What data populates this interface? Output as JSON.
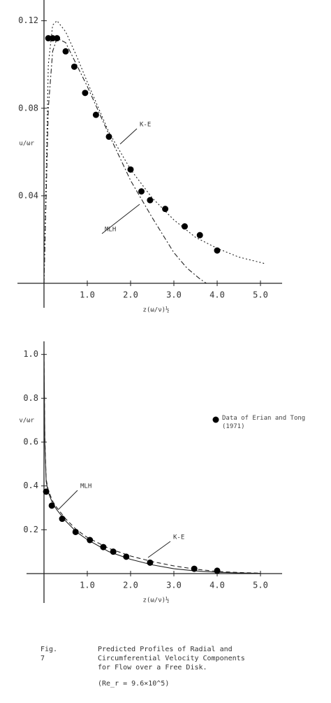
{
  "chart_data": [
    {
      "type": "line",
      "ylabel": "u/ωr",
      "xlabel": "z(ω/ν)½",
      "xlim": [
        0,
        5.5
      ],
      "ylim": [
        0,
        0.125
      ],
      "xticks": [
        {
          "value": 1,
          "label": "1.0"
        },
        {
          "value": 2,
          "label": "2.0"
        },
        {
          "value": 3,
          "label": "3.0"
        },
        {
          "value": 4,
          "label": "4.0"
        },
        {
          "value": 5,
          "label": "5.0"
        }
      ],
      "yticks": [
        0.04,
        0.08,
        0.12
      ],
      "series": [
        {
          "name": "K-E",
          "kind": "line",
          "color": "#222",
          "dash": "2,3",
          "x": [
            0,
            0.1,
            0.2,
            0.3,
            0.5,
            0.75,
            1,
            1.5,
            2,
            2.5,
            3,
            3.5,
            4,
            4.5,
            5.1
          ],
          "values": [
            0,
            0.1,
            0.118,
            0.12,
            0.115,
            0.104,
            0.092,
            0.069,
            0.052,
            0.039,
            0.029,
            0.021,
            0.016,
            0.012,
            0.009
          ]
        },
        {
          "name": "MLH",
          "kind": "line",
          "color": "#222",
          "dash": "7,3,2,3",
          "x": [
            0,
            0.1,
            0.2,
            0.3,
            0.5,
            0.75,
            1,
            1.5,
            2,
            2.5,
            3,
            3.3,
            3.6,
            3.75
          ],
          "values": [
            0,
            0.08,
            0.106,
            0.112,
            0.11,
            0.1,
            0.09,
            0.068,
            0.047,
            0.03,
            0.014,
            0.007,
            0.002,
            0
          ]
        },
        {
          "kind": "scatter",
          "color": "#000",
          "x": [
            0.1,
            0.2,
            0.3,
            0.5,
            0.7,
            0.95,
            1.2,
            1.5,
            2.0,
            2.25,
            2.45,
            2.8,
            3.25,
            3.6,
            4.0
          ],
          "values": [
            0.112,
            0.112,
            0.112,
            0.106,
            0.099,
            0.087,
            0.077,
            0.067,
            0.052,
            0.042,
            0.038,
            0.034,
            0.026,
            0.022,
            0.015
          ]
        }
      ]
    },
    {
      "type": "line",
      "ylabel": "v/ωr",
      "xlabel": "z(ω/ν)½",
      "xlim": [
        0,
        5.5
      ],
      "ylim": [
        0,
        1.05
      ],
      "xticks": [
        {
          "value": 1,
          "label": "1.0"
        },
        {
          "value": 2,
          "label": "2.0"
        },
        {
          "value": 3,
          "label": "3.0"
        },
        {
          "value": 4,
          "label": "4.0"
        },
        {
          "value": 5,
          "label": "5.0"
        }
      ],
      "yticks": [
        0.2,
        0.4,
        0.6,
        0.8,
        {
          "value": 1,
          "label": "1.0"
        }
      ],
      "series": [
        {
          "name": "K-E",
          "kind": "line",
          "color": "#222",
          "dash": "6,4",
          "x": [
            0,
            0.02,
            0.05,
            0.1,
            0.2,
            0.3,
            0.5,
            0.75,
            1,
            1.5,
            2,
            2.5,
            3,
            3.5,
            4,
            4.5,
            5
          ],
          "values": [
            1.0,
            0.62,
            0.43,
            0.38,
            0.33,
            0.3,
            0.25,
            0.2,
            0.165,
            0.115,
            0.08,
            0.055,
            0.035,
            0.02,
            0.01,
            0.005,
            0.002
          ]
        },
        {
          "name": "MLH",
          "kind": "line",
          "color": "#222",
          "dash": "none",
          "x": [
            0,
            0.02,
            0.05,
            0.1,
            0.2,
            0.3,
            0.5,
            0.75,
            1,
            1.5,
            2,
            2.5,
            3,
            3.5,
            4,
            4.5,
            5
          ],
          "values": [
            1.0,
            0.6,
            0.42,
            0.37,
            0.32,
            0.29,
            0.24,
            0.19,
            0.155,
            0.1,
            0.065,
            0.04,
            0.022,
            0.012,
            0.006,
            0.003,
            0.001
          ]
        },
        {
          "name": "Data of Erian and Tong (1971)",
          "kind": "scatter",
          "color": "#000",
          "x": [
            0.05,
            0.18,
            0.42,
            0.73,
            1.06,
            1.37,
            1.6,
            1.9,
            2.45,
            3.47,
            4.0
          ],
          "values": [
            0.374,
            0.31,
            0.25,
            0.19,
            0.153,
            0.121,
            0.1,
            0.077,
            0.05,
            0.022,
            0.013
          ]
        }
      ]
    }
  ],
  "caption": {
    "label": "Fig. 7",
    "lines": [
      "Predicted Profiles of Radial and",
      "Circumferential Velocity Components",
      "for Flow over a Free Disk."
    ],
    "note": "(Re_r = 9.6×10^5)"
  }
}
